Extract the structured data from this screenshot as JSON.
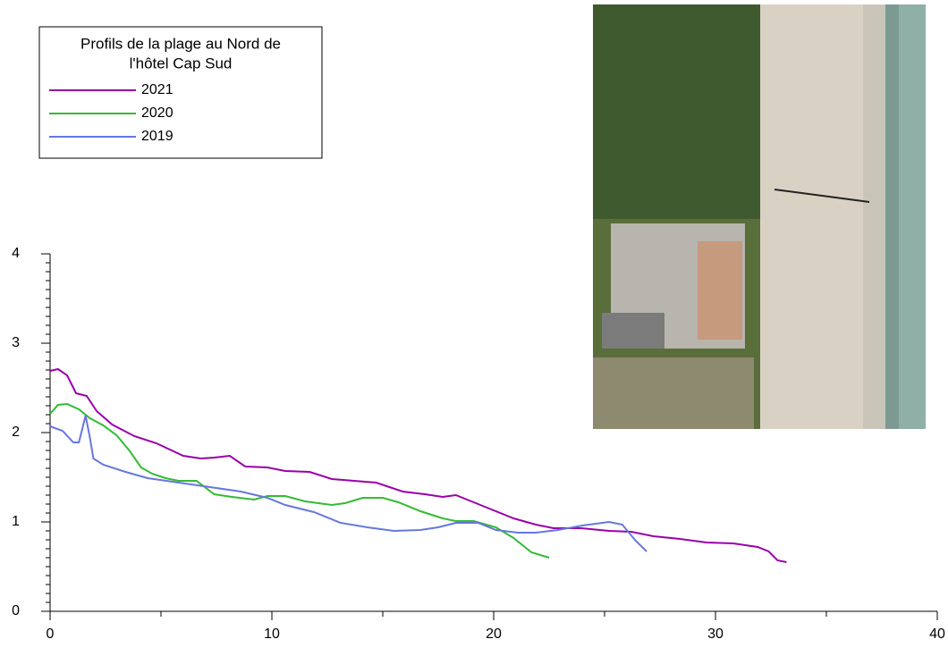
{
  "chart_data": {
    "type": "line",
    "legend_title": [
      "Profils de la plage au Nord de",
      "l'hôtel Cap Sud"
    ],
    "legend_position": "upper left",
    "xlim": [
      0,
      40
    ],
    "xticks": [
      0,
      10,
      20,
      30,
      40
    ],
    "x_minor_ticks": [
      5,
      15,
      25,
      35
    ],
    "ylim": [
      0,
      4
    ],
    "yticks": [
      0,
      1,
      2,
      3,
      4
    ],
    "y_minor_ticks": [
      0.1,
      0.2,
      0.3,
      0.4,
      0.5,
      0.6,
      0.7,
      0.8,
      0.9,
      1.1,
      1.2,
      1.3,
      1.4,
      1.5,
      1.6,
      1.7,
      1.8,
      1.9,
      2.1,
      2.2,
      2.3,
      2.4,
      2.5,
      2.6,
      2.7,
      2.8,
      2.9,
      3.1,
      3.2,
      3.3,
      3.4,
      3.5,
      3.6,
      3.7,
      3.8,
      3.9
    ],
    "series": [
      {
        "name": "2021",
        "color": "#9900aa",
        "x": [
          0,
          0.36,
          0.77,
          1.17,
          1.65,
          2.1,
          2.8,
          3.8,
          4.8,
          6,
          6.8,
          7.4,
          8.1,
          8.8,
          9.8,
          10.6,
          11.7,
          12.7,
          13.7,
          14.7,
          15.9,
          16.9,
          17.7,
          18.3,
          18.9,
          19.9,
          20.9,
          21.9,
          22.7,
          23.95,
          25.2,
          26.2,
          27.2,
          28.4,
          29.6,
          30.8,
          31.9,
          32.4,
          32.8,
          33.2
        ],
        "values": [
          2.69,
          2.71,
          2.64,
          2.44,
          2.41,
          2.24,
          2.09,
          1.96,
          1.88,
          1.74,
          1.71,
          1.72,
          1.74,
          1.62,
          1.61,
          1.57,
          1.56,
          1.48,
          1.46,
          1.44,
          1.34,
          1.31,
          1.28,
          1.3,
          1.24,
          1.14,
          1.04,
          0.97,
          0.93,
          0.93,
          0.9,
          0.89,
          0.84,
          0.81,
          0.77,
          0.76,
          0.72,
          0.67,
          0.57,
          0.55
        ]
      },
      {
        "name": "2020",
        "color": "#33bb33",
        "x": [
          0,
          0.36,
          0.77,
          1.3,
          1.8,
          2.4,
          3,
          3.6,
          4.1,
          4.6,
          5.2,
          5.8,
          6.6,
          7.4,
          8.2,
          9.2,
          9.8,
          10.6,
          11.5,
          12.7,
          13.3,
          14.1,
          15,
          15.7,
          16.7,
          17.7,
          18.3,
          19.1,
          20.1,
          20.9,
          21.7,
          22.5
        ],
        "values": [
          2.21,
          2.31,
          2.32,
          2.26,
          2.16,
          2.08,
          1.97,
          1.79,
          1.61,
          1.54,
          1.49,
          1.46,
          1.46,
          1.31,
          1.28,
          1.25,
          1.29,
          1.29,
          1.23,
          1.19,
          1.21,
          1.27,
          1.27,
          1.22,
          1.12,
          1.04,
          1.01,
          1.01,
          0.94,
          0.82,
          0.66,
          0.6
        ]
      },
      {
        "name": "2019",
        "color": "#6677dd",
        "x": [
          0,
          0.56,
          1.05,
          1.3,
          1.45,
          1.6,
          1.8,
          1.95,
          2.4,
          3.4,
          4.4,
          5.8,
          7.2,
          8.6,
          9.8,
          10.6,
          11.9,
          13.1,
          14.3,
          15.5,
          16.7,
          17.5,
          18.3,
          19.3,
          20.1,
          21.1,
          21.9,
          22.9,
          24,
          25.2,
          25.8,
          26.4,
          26.9
        ],
        "values": [
          2.07,
          2.02,
          1.89,
          1.89,
          2.04,
          2.19,
          1.94,
          1.71,
          1.64,
          1.56,
          1.49,
          1.44,
          1.39,
          1.34,
          1.27,
          1.19,
          1.11,
          0.99,
          0.94,
          0.9,
          0.91,
          0.94,
          0.99,
          0.99,
          0.91,
          0.88,
          0.88,
          0.91,
          0.96,
          1.0,
          0.97,
          0.79,
          0.67
        ]
      }
    ]
  }
}
